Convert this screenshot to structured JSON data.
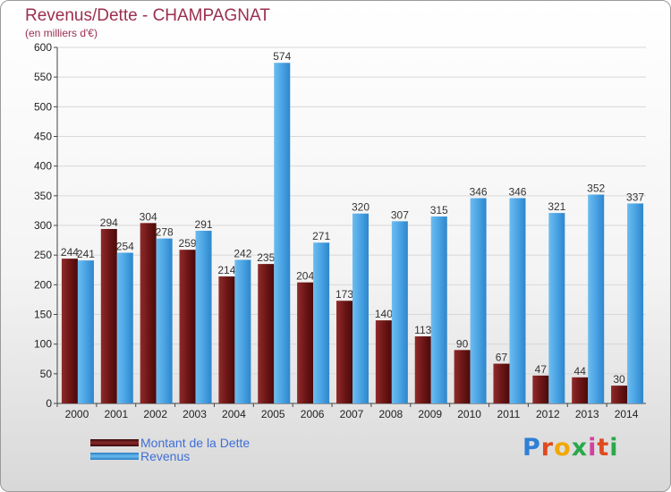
{
  "chart_data": {
    "type": "bar",
    "title": "Revenus/Dette - CHAMPAGNAT",
    "subtitle": "(en milliers d'€)",
    "categories": [
      "2000",
      "2001",
      "2002",
      "2003",
      "2004",
      "2005",
      "2006",
      "2007",
      "2008",
      "2009",
      "2010",
      "2011",
      "2012",
      "2013",
      "2014"
    ],
    "series": [
      {
        "name": "Montant de la Dette",
        "color": "#7a1a1a",
        "values": [
          244,
          294,
          304,
          259,
          214,
          235,
          204,
          173,
          140,
          113,
          90,
          67,
          47,
          44,
          30
        ]
      },
      {
        "name": "Revenus",
        "color": "#4aa3e3",
        "values": [
          241,
          254,
          278,
          291,
          242,
          574,
          271,
          320,
          307,
          315,
          346,
          346,
          321,
          352,
          337
        ]
      }
    ],
    "ylim": [
      0,
      600
    ],
    "yticks": [
      0,
      50,
      100,
      150,
      200,
      250,
      300,
      350,
      400,
      450,
      500,
      550,
      600
    ],
    "grid": true,
    "legend_position": "bottom-left"
  },
  "legend": {
    "debt_label": "Montant de la Dette",
    "revenue_label": "Revenus"
  },
  "logo": {
    "text": "Proxiti",
    "letter_colors": [
      "#2e7fd6",
      "#e04a1e",
      "#f0a800",
      "#2aa84a",
      "#d43fa0",
      "#e04a1e",
      "#2aa84a"
    ]
  }
}
